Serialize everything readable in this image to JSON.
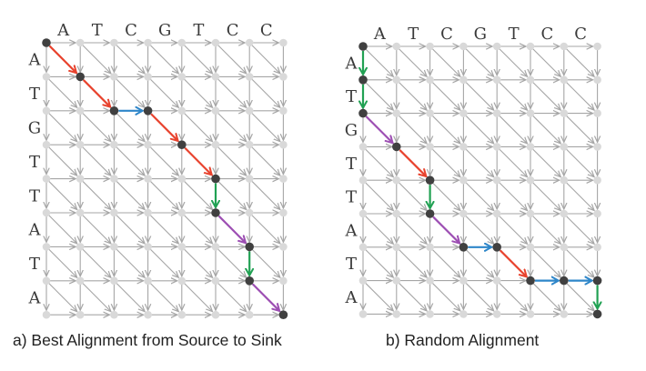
{
  "panels": [
    {
      "id": "a",
      "caption": "a) Best Alignment from Source to Sink",
      "top_sequence": [
        "A",
        "T",
        "C",
        "G",
        "T",
        "C",
        "C"
      ],
      "left_sequence": [
        "A",
        "T",
        "G",
        "T",
        "T",
        "A",
        "T",
        "A"
      ],
      "path": [
        [
          0,
          0
        ],
        [
          1,
          1
        ],
        [
          2,
          2
        ],
        [
          2,
          3
        ],
        [
          3,
          4
        ],
        [
          4,
          5
        ],
        [
          5,
          5
        ],
        [
          6,
          6
        ],
        [
          7,
          6
        ],
        [
          8,
          7
        ]
      ],
      "path_moves": [
        "diagonal-red",
        "diagonal-red",
        "horizontal-blue",
        "diagonal-red",
        "diagonal-red",
        "vertical-green",
        "diagonal-purple",
        "vertical-green",
        "diagonal-purple"
      ]
    },
    {
      "id": "b",
      "caption": "b) Random Alignment",
      "top_sequence": [
        "A",
        "T",
        "C",
        "G",
        "T",
        "C",
        "C"
      ],
      "left_sequence": [
        "A",
        "T",
        "G",
        "T",
        "T",
        "A",
        "T",
        "A"
      ],
      "path": [
        [
          0,
          0
        ],
        [
          1,
          0
        ],
        [
          2,
          0
        ],
        [
          3,
          1
        ],
        [
          4,
          2
        ],
        [
          5,
          2
        ],
        [
          6,
          3
        ],
        [
          6,
          4
        ],
        [
          7,
          5
        ],
        [
          7,
          6
        ],
        [
          7,
          7
        ],
        [
          8,
          7
        ]
      ],
      "path_moves": [
        "vertical-green",
        "vertical-green",
        "diagonal-purple",
        "diagonal-red",
        "vertical-green",
        "diagonal-purple",
        "horizontal-blue",
        "diagonal-red",
        "horizontal-blue",
        "horizontal-blue",
        "vertical-green"
      ]
    }
  ],
  "colors": {
    "grid_node": "#d9d9d9",
    "grid_edge": "#a6a6a6",
    "path_node": "#404040",
    "diagonal-red": "#e8432e",
    "horizontal-blue": "#2e86c9",
    "vertical-green": "#21a153",
    "diagonal-purple": "#9d4fb3"
  }
}
